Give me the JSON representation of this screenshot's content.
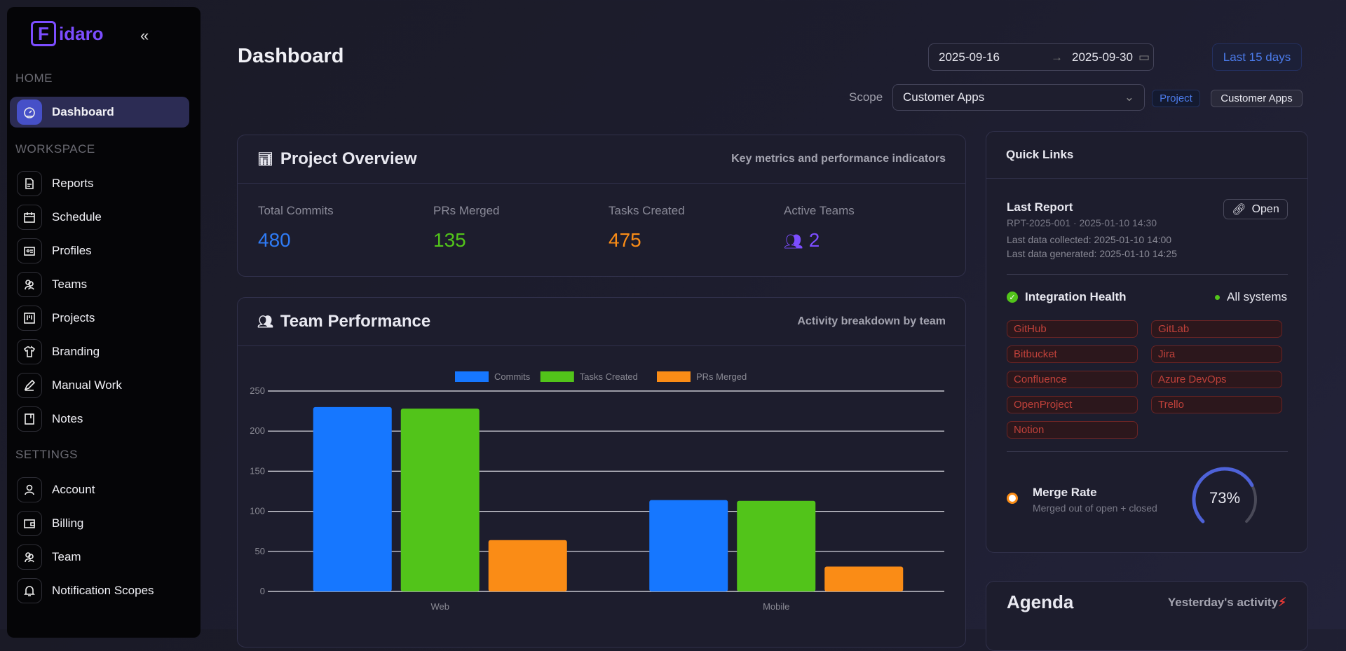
{
  "sidebar": {
    "logo": "idaro",
    "logo_mark": "F",
    "sections": {
      "home": "HOME",
      "workspace": "WORKSPACE",
      "settings": "SETTINGS"
    },
    "items": [
      {
        "label": "Dashboard",
        "icon": "gauge-icon"
      },
      {
        "label": "Reports",
        "icon": "file-icon"
      },
      {
        "label": "Schedule",
        "icon": "calendar-icon"
      },
      {
        "label": "Profiles",
        "icon": "id-card-icon"
      },
      {
        "label": "Teams",
        "icon": "users-icon"
      },
      {
        "label": "Projects",
        "icon": "kanban-icon"
      },
      {
        "label": "Branding",
        "icon": "shirt-icon"
      },
      {
        "label": "Manual Work",
        "icon": "pencil-icon"
      },
      {
        "label": "Notes",
        "icon": "notebook-icon"
      },
      {
        "label": "Account",
        "icon": "user-icon"
      },
      {
        "label": "Billing",
        "icon": "wallet-icon"
      },
      {
        "label": "Team",
        "icon": "users-icon"
      },
      {
        "label": "Notification Scopes",
        "icon": "bell-icon"
      }
    ]
  },
  "header": {
    "title": "Dashboard",
    "date_from": "2025-09-16",
    "date_to": "2025-09-30",
    "range_button": "Last 15 days",
    "scope_label": "Scope",
    "scope_value": "Customer Apps",
    "tag_type": "Project",
    "tag_value": "Customer Apps"
  },
  "overview": {
    "title": "Project Overview",
    "subtitle": "Key metrics and performance indicators",
    "stats": [
      {
        "label": "Total Commits",
        "value": "480",
        "color": "#2f7bf5"
      },
      {
        "label": "PRs Merged",
        "value": "135",
        "color": "#52c41a"
      },
      {
        "label": "Tasks Created",
        "value": "475",
        "color": "#fa8c16"
      },
      {
        "label": "Active Teams",
        "value": "2",
        "color": "#7c4dff"
      }
    ]
  },
  "team": {
    "title": "Team Performance",
    "subtitle": "Activity breakdown by team"
  },
  "chart_data": {
    "type": "bar",
    "categories": [
      "Web",
      "Mobile"
    ],
    "series": [
      {
        "name": "Commits",
        "values": [
          230,
          114
        ],
        "color": "#1677ff"
      },
      {
        "name": "Tasks Created",
        "values": [
          228,
          113
        ],
        "color": "#52c41a"
      },
      {
        "name": "PRs Merged",
        "values": [
          64,
          31
        ],
        "color": "#fa8c16"
      }
    ],
    "ylim": [
      0,
      250
    ],
    "yticks": [
      0,
      50,
      100,
      150,
      200,
      250
    ],
    "grid": true,
    "legend": "top-center"
  },
  "quick": {
    "title": "Quick Links",
    "last_report": {
      "title": "Last Report",
      "id_line": "RPT-2025-001 · 2025-01-10 14:30",
      "collected": "Last data collected: 2025-01-10 14:00",
      "generated": "Last data generated: 2025-01-10 14:25",
      "open": "Open"
    },
    "health": {
      "title": "Integration Health",
      "status": "All systems",
      "integrations": [
        "GitHub",
        "GitLab",
        "Bitbucket",
        "Jira",
        "Confluence",
        "Azure DevOps",
        "OpenProject",
        "Trello",
        "Notion"
      ]
    },
    "merge": {
      "title": "Merge Rate",
      "subtitle": "Merged out of open + closed",
      "value": "73%",
      "fraction": 0.73
    }
  },
  "agenda": {
    "title": "Agenda",
    "subtitle": "Yesterday's activity"
  }
}
